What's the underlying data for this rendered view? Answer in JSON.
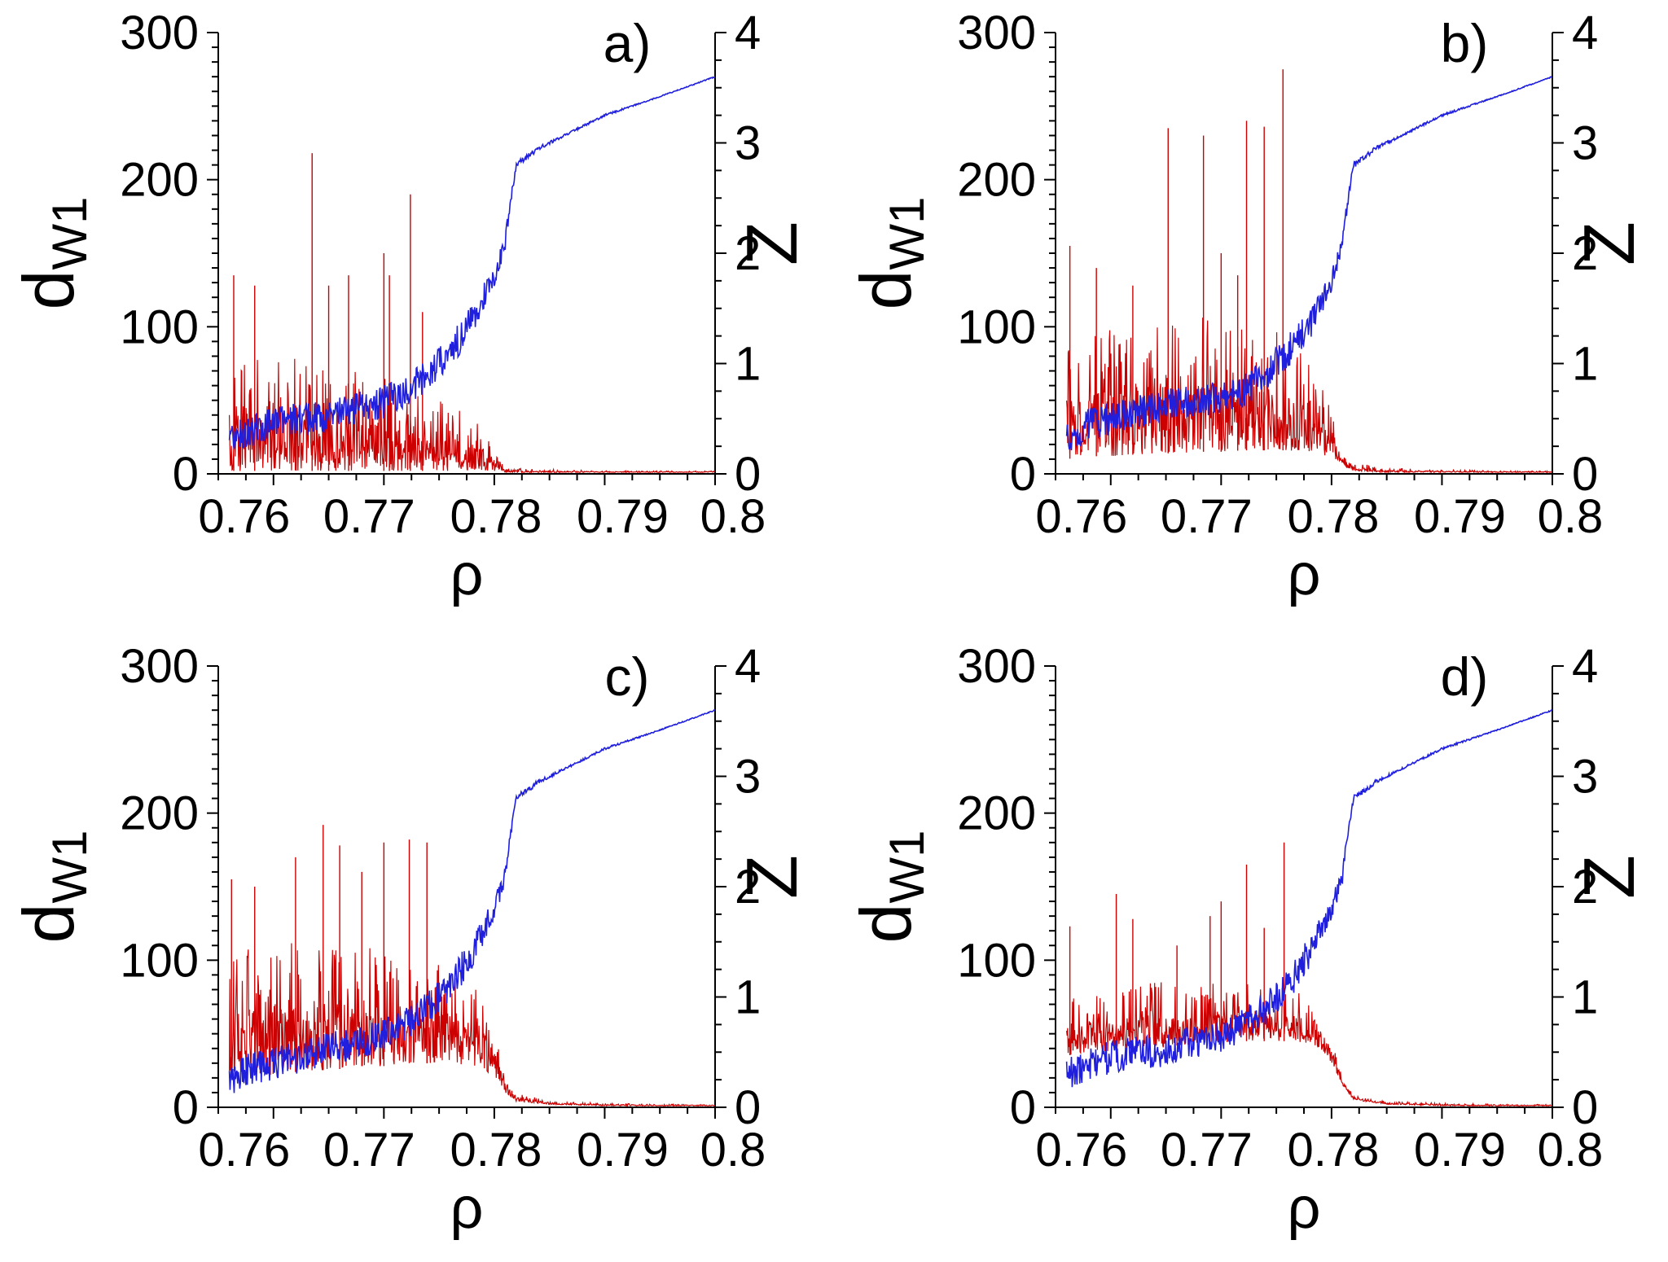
{
  "chart_data": [
    {
      "type": "line",
      "panel_label": "a)",
      "xlabel": "ρ",
      "ylabel_main": "d",
      "ylabel_sub": "W1",
      "y2label": "Z",
      "xlim": [
        0.755,
        0.8
      ],
      "ylim": [
        0,
        300
      ],
      "y2lim": [
        0,
        4
      ],
      "x_ticks": [
        "0.76",
        "0.77",
        "0.78",
        "0.79",
        "0.8"
      ],
      "y_ticks": [
        "0",
        "100",
        "200",
        "300"
      ],
      "y2_ticks": [
        "0",
        "1",
        "2",
        "3",
        "4"
      ],
      "series_colors": {
        "d_W1": "#cc0000",
        "Z": "#1f1fdd"
      },
      "d_W1": {
        "x": [
          0.756,
          0.758,
          0.76,
          0.762,
          0.764,
          0.766,
          0.768,
          0.77,
          0.772,
          0.774,
          0.776,
          0.778,
          0.779,
          0.78,
          0.781,
          0.782,
          0.785,
          0.79,
          0.795,
          0.8
        ],
        "low": [
          2,
          2,
          2,
          2,
          2,
          2,
          2,
          2,
          2,
          2,
          2,
          2,
          2,
          2,
          1,
          1,
          1,
          1,
          1,
          1
        ],
        "high": [
          80,
          85,
          75,
          80,
          75,
          70,
          70,
          65,
          60,
          55,
          50,
          40,
          30,
          15,
          6,
          4,
          3,
          2,
          2,
          2
        ],
        "spikes": [
          [
            0.7564,
            135
          ],
          [
            0.7583,
            128
          ],
          [
            0.7635,
            218
          ],
          [
            0.765,
            128
          ],
          [
            0.7668,
            135
          ],
          [
            0.77,
            150
          ],
          [
            0.7724,
            190
          ],
          [
            0.7735,
            110
          ],
          [
            0.7705,
            135
          ]
        ]
      },
      "Z": {
        "x": [
          0.756,
          0.758,
          0.76,
          0.762,
          0.764,
          0.766,
          0.768,
          0.77,
          0.772,
          0.774,
          0.776,
          0.778,
          0.779,
          0.78,
          0.781,
          0.7815,
          0.782,
          0.784,
          0.786,
          0.79,
          0.795,
          0.8
        ],
        "y": [
          0.3,
          0.4,
          0.45,
          0.5,
          0.5,
          0.55,
          0.6,
          0.65,
          0.75,
          0.9,
          1.1,
          1.4,
          1.6,
          1.8,
          2.1,
          2.5,
          2.8,
          2.95,
          3.05,
          3.25,
          3.42,
          3.6
        ],
        "noise": [
          0.15,
          0.15,
          0.15,
          0.15,
          0.15,
          0.15,
          0.15,
          0.15,
          0.15,
          0.15,
          0.15,
          0.15,
          0.12,
          0.1,
          0.08,
          0.05,
          0.03,
          0.02,
          0.01,
          0.01,
          0.005,
          0.005
        ]
      }
    },
    {
      "type": "line",
      "panel_label": "b)",
      "xlabel": "ρ",
      "ylabel_main": "d",
      "ylabel_sub": "W1",
      "y2label": "Z",
      "xlim": [
        0.755,
        0.8
      ],
      "ylim": [
        0,
        300
      ],
      "y2lim": [
        0,
        4
      ],
      "x_ticks": [
        "0.76",
        "0.77",
        "0.78",
        "0.79",
        "0.8"
      ],
      "y_ticks": [
        "0",
        "100",
        "200",
        "300"
      ],
      "y2_ticks": [
        "0",
        "1",
        "2",
        "3",
        "4"
      ],
      "series_colors": {
        "d_W1": "#cc0000",
        "Z": "#1f1fdd"
      },
      "d_W1": {
        "x": [
          0.756,
          0.758,
          0.76,
          0.762,
          0.764,
          0.766,
          0.768,
          0.77,
          0.772,
          0.774,
          0.776,
          0.778,
          0.779,
          0.78,
          0.781,
          0.782,
          0.785,
          0.79,
          0.795,
          0.8
        ],
        "low": [
          10,
          12,
          12,
          13,
          14,
          14,
          15,
          15,
          16,
          16,
          16,
          15,
          14,
          10,
          5,
          2,
          1,
          1,
          1,
          1
        ],
        "high": [
          95,
          100,
          100,
          105,
          110,
          105,
          110,
          105,
          100,
          100,
          95,
          75,
          60,
          45,
          20,
          8,
          4,
          3,
          2,
          2
        ],
        "spikes": [
          [
            0.7563,
            155
          ],
          [
            0.7587,
            140
          ],
          [
            0.762,
            128
          ],
          [
            0.7652,
            235
          ],
          [
            0.7684,
            230
          ],
          [
            0.77,
            150
          ],
          [
            0.7723,
            240
          ],
          [
            0.7739,
            236
          ],
          [
            0.7756,
            275
          ],
          [
            0.7715,
            135
          ]
        ]
      },
      "Z": {
        "x": [
          0.756,
          0.758,
          0.76,
          0.762,
          0.764,
          0.766,
          0.768,
          0.77,
          0.772,
          0.774,
          0.776,
          0.778,
          0.779,
          0.78,
          0.781,
          0.7815,
          0.782,
          0.784,
          0.786,
          0.79,
          0.795,
          0.8
        ],
        "y": [
          0.3,
          0.45,
          0.5,
          0.55,
          0.6,
          0.65,
          0.65,
          0.7,
          0.75,
          0.9,
          1.1,
          1.35,
          1.55,
          1.75,
          2.1,
          2.5,
          2.8,
          2.95,
          3.05,
          3.25,
          3.42,
          3.6
        ],
        "noise": [
          0.15,
          0.15,
          0.15,
          0.15,
          0.15,
          0.15,
          0.15,
          0.15,
          0.15,
          0.15,
          0.15,
          0.15,
          0.12,
          0.1,
          0.08,
          0.05,
          0.03,
          0.02,
          0.01,
          0.01,
          0.005,
          0.005
        ]
      }
    },
    {
      "type": "line",
      "panel_label": "c)",
      "xlabel": "ρ",
      "ylabel_main": "d",
      "ylabel_sub": "W1",
      "y2label": "Z",
      "xlim": [
        0.755,
        0.8
      ],
      "ylim": [
        0,
        300
      ],
      "y2lim": [
        0,
        4
      ],
      "x_ticks": [
        "0.76",
        "0.77",
        "0.78",
        "0.79",
        "0.8"
      ],
      "y_ticks": [
        "0",
        "100",
        "200",
        "300"
      ],
      "y2_ticks": [
        "0",
        "1",
        "2",
        "3",
        "4"
      ],
      "series_colors": {
        "d_W1": "#cc0000",
        "Z": "#1f1fdd"
      },
      "d_W1": {
        "x": [
          0.756,
          0.758,
          0.76,
          0.762,
          0.764,
          0.766,
          0.768,
          0.77,
          0.772,
          0.774,
          0.776,
          0.778,
          0.779,
          0.78,
          0.781,
          0.782,
          0.785,
          0.79,
          0.795,
          0.8
        ],
        "low": [
          20,
          22,
          22,
          24,
          25,
          26,
          28,
          28,
          30,
          30,
          30,
          28,
          26,
          20,
          10,
          4,
          2,
          1,
          1,
          1
        ],
        "high": [
          100,
          110,
          110,
          115,
          115,
          110,
          110,
          105,
          100,
          100,
          95,
          85,
          70,
          55,
          25,
          10,
          4,
          3,
          2,
          2
        ],
        "spikes": [
          [
            0.7562,
            155
          ],
          [
            0.7583,
            150
          ],
          [
            0.762,
            170
          ],
          [
            0.7645,
            192
          ],
          [
            0.766,
            178
          ],
          [
            0.77,
            180
          ],
          [
            0.7723,
            182
          ],
          [
            0.7739,
            180
          ],
          [
            0.768,
            160
          ]
        ]
      },
      "Z": {
        "x": [
          0.756,
          0.758,
          0.76,
          0.762,
          0.764,
          0.766,
          0.768,
          0.77,
          0.772,
          0.774,
          0.776,
          0.778,
          0.779,
          0.78,
          0.781,
          0.7815,
          0.782,
          0.784,
          0.786,
          0.79,
          0.795,
          0.8
        ],
        "y": [
          0.25,
          0.35,
          0.4,
          0.45,
          0.5,
          0.55,
          0.6,
          0.65,
          0.75,
          0.9,
          1.1,
          1.4,
          1.6,
          1.8,
          2.1,
          2.5,
          2.8,
          2.95,
          3.05,
          3.25,
          3.42,
          3.6
        ],
        "noise": [
          0.15,
          0.15,
          0.15,
          0.15,
          0.15,
          0.15,
          0.15,
          0.15,
          0.15,
          0.15,
          0.15,
          0.15,
          0.12,
          0.1,
          0.08,
          0.05,
          0.03,
          0.02,
          0.01,
          0.01,
          0.005,
          0.005
        ]
      }
    },
    {
      "type": "line",
      "panel_label": "d)",
      "xlabel": "ρ",
      "ylabel_main": "d",
      "ylabel_sub": "W1",
      "y2label": "Z",
      "xlim": [
        0.755,
        0.8
      ],
      "ylim": [
        0,
        300
      ],
      "y2lim": [
        0,
        4
      ],
      "x_ticks": [
        "0.76",
        "0.77",
        "0.78",
        "0.79",
        "0.8"
      ],
      "y_ticks": [
        "0",
        "100",
        "200",
        "300"
      ],
      "y2_ticks": [
        "0",
        "1",
        "2",
        "3",
        "4"
      ],
      "series_colors": {
        "d_W1": "#cc0000",
        "Z": "#1f1fdd"
      },
      "d_W1": {
        "x": [
          0.756,
          0.758,
          0.76,
          0.762,
          0.764,
          0.766,
          0.768,
          0.77,
          0.772,
          0.774,
          0.776,
          0.778,
          0.779,
          0.78,
          0.781,
          0.782,
          0.785,
          0.79,
          0.795,
          0.8
        ],
        "low": [
          35,
          38,
          38,
          40,
          40,
          42,
          42,
          44,
          45,
          45,
          45,
          43,
          40,
          30,
          15,
          5,
          2,
          1,
          1,
          1
        ],
        "high": [
          75,
          80,
          80,
          82,
          85,
          85,
          85,
          85,
          85,
          85,
          82,
          75,
          65,
          45,
          20,
          8,
          4,
          3,
          2,
          2
        ],
        "spikes": [
          [
            0.7563,
            123
          ],
          [
            0.7605,
            145
          ],
          [
            0.762,
            128
          ],
          [
            0.766,
            110
          ],
          [
            0.77,
            140
          ],
          [
            0.7723,
            165
          ],
          [
            0.7739,
            122
          ],
          [
            0.7757,
            180
          ],
          [
            0.769,
            130
          ]
        ]
      },
      "Z": {
        "x": [
          0.756,
          0.758,
          0.76,
          0.762,
          0.764,
          0.766,
          0.768,
          0.77,
          0.772,
          0.774,
          0.776,
          0.778,
          0.779,
          0.78,
          0.781,
          0.7815,
          0.782,
          0.784,
          0.786,
          0.79,
          0.795,
          0.8
        ],
        "y": [
          0.3,
          0.4,
          0.45,
          0.5,
          0.5,
          0.55,
          0.6,
          0.65,
          0.75,
          0.9,
          1.1,
          1.4,
          1.6,
          1.8,
          2.1,
          2.5,
          2.8,
          2.95,
          3.05,
          3.25,
          3.42,
          3.6
        ],
        "noise": [
          0.15,
          0.15,
          0.15,
          0.15,
          0.15,
          0.15,
          0.15,
          0.15,
          0.15,
          0.15,
          0.15,
          0.15,
          0.12,
          0.1,
          0.08,
          0.05,
          0.03,
          0.02,
          0.01,
          0.01,
          0.005,
          0.005
        ]
      }
    }
  ]
}
